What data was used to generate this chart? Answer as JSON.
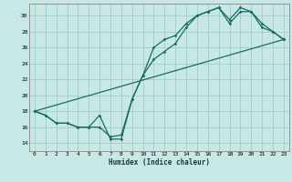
{
  "xlabel": "Humidex (Indice chaleur)",
  "bg_color": "#c8e8e5",
  "grid_color": "#a0ccc8",
  "line_color": "#1a6b65",
  "xlim": [
    -0.5,
    23.5
  ],
  "ylim": [
    13.0,
    31.5
  ],
  "xticks": [
    0,
    1,
    2,
    3,
    4,
    5,
    6,
    7,
    8,
    9,
    10,
    11,
    12,
    13,
    14,
    15,
    16,
    17,
    18,
    19,
    20,
    21,
    22,
    23
  ],
  "yticks": [
    14,
    16,
    18,
    20,
    22,
    24,
    26,
    28,
    30
  ],
  "line1_x": [
    0,
    1,
    2,
    3,
    4,
    5,
    6,
    7,
    8,
    9,
    10,
    11,
    12,
    13,
    14,
    15,
    16,
    17,
    18,
    19,
    20,
    21,
    22,
    23
  ],
  "line1_y": [
    18.0,
    17.5,
    16.5,
    16.5,
    16.0,
    16.0,
    17.5,
    14.5,
    14.5,
    19.5,
    22.5,
    26.0,
    27.0,
    27.5,
    29.0,
    30.0,
    30.5,
    31.0,
    29.5,
    31.0,
    30.5,
    29.0,
    28.0,
    27.0
  ],
  "line2_x": [
    0,
    1,
    2,
    3,
    4,
    5,
    6,
    7,
    8,
    9,
    10,
    11,
    12,
    13,
    14,
    15,
    16,
    17,
    18,
    19,
    20,
    21,
    22,
    23
  ],
  "line2_y": [
    18.0,
    17.5,
    16.5,
    16.5,
    16.0,
    16.0,
    16.0,
    14.8,
    15.0,
    19.5,
    22.5,
    24.5,
    25.5,
    26.5,
    28.5,
    30.0,
    30.5,
    31.0,
    29.0,
    30.5,
    30.5,
    28.5,
    28.0,
    27.0
  ],
  "line3_x": [
    0,
    23
  ],
  "line3_y": [
    18.0,
    27.0
  ]
}
